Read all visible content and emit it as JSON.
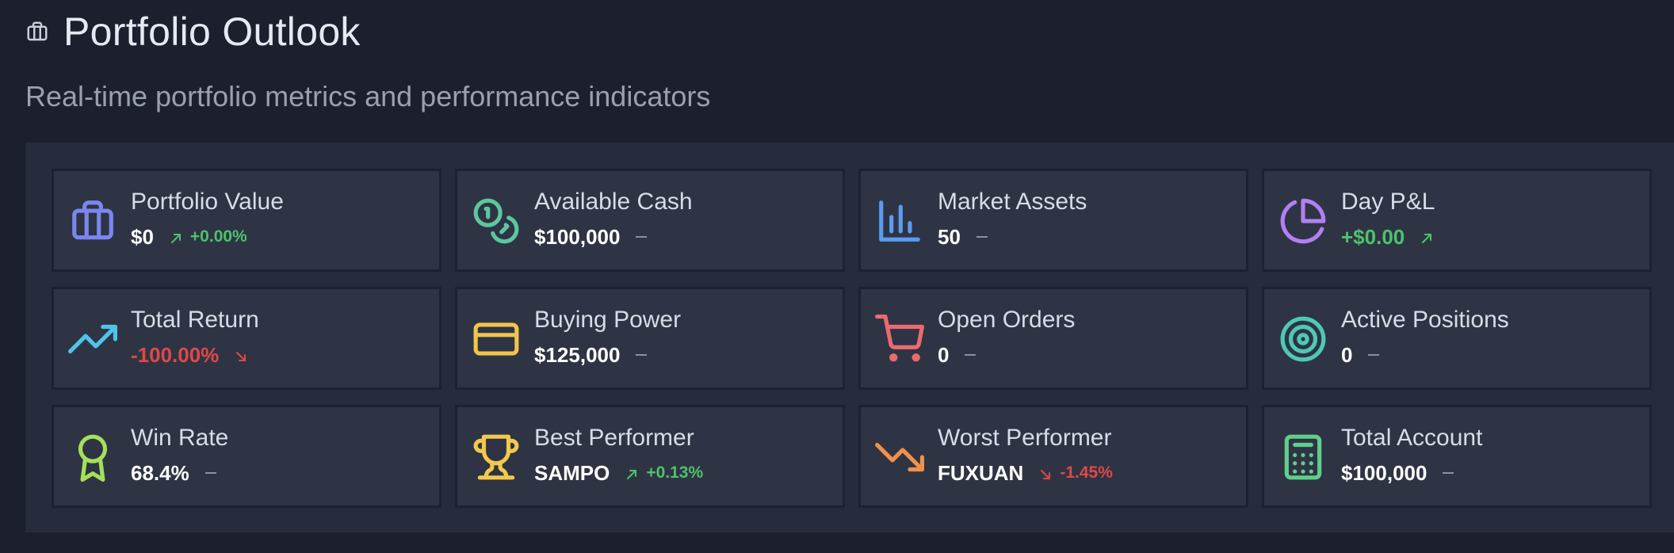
{
  "header": {
    "title": "Portfolio Outlook",
    "title_icon": "briefcase-icon",
    "subtitle": "Real-time portfolio metrics and performance indicators"
  },
  "cards": [
    {
      "label": "Portfolio Value",
      "value": "$0",
      "trend_text": "+0.00%",
      "trend": "up",
      "icon": "briefcase-icon",
      "icon_color": "#7b86f0"
    },
    {
      "label": "Available Cash",
      "value": "$100,000",
      "trend_text": "",
      "trend": "neutral",
      "icon": "coins-icon",
      "icon_color": "#5cc79e"
    },
    {
      "label": "Market Assets",
      "value": "50",
      "trend_text": "",
      "trend": "neutral",
      "icon": "bar-chart-icon",
      "icon_color": "#5b9bf0"
    },
    {
      "label": "Day P&L",
      "value": "+$0.00",
      "trend_text": "",
      "trend": "up",
      "icon": "pie-chart-icon",
      "icon_color": "#b27ff2"
    },
    {
      "label": "Total Return",
      "value": "-100.00%",
      "trend_text": "",
      "trend": "down",
      "icon": "trending-up-icon",
      "icon_color": "#4fc3e8"
    },
    {
      "label": "Buying Power",
      "value": "$125,000",
      "trend_text": "",
      "trend": "neutral",
      "icon": "credit-card-icon",
      "icon_color": "#f0c44c"
    },
    {
      "label": "Open Orders",
      "value": "0",
      "trend_text": "",
      "trend": "neutral",
      "icon": "shopping-cart-icon",
      "icon_color": "#ec6a6f"
    },
    {
      "label": "Active Positions",
      "value": "0",
      "trend_text": "",
      "trend": "neutral",
      "icon": "target-icon",
      "icon_color": "#4ecab2"
    },
    {
      "label": "Win Rate",
      "value": "68.4%",
      "trend_text": "",
      "trend": "neutral",
      "icon": "award-icon",
      "icon_color": "#a6e05a"
    },
    {
      "label": "Best Performer",
      "value": "SAMPO",
      "trend_text": "+0.13%",
      "trend": "up",
      "icon": "trophy-icon",
      "icon_color": "#f2c94c"
    },
    {
      "label": "Worst Performer",
      "value": "FUXUAN",
      "trend_text": "-1.45%",
      "trend": "down",
      "icon": "trending-down-icon",
      "icon_color": "#f0914a"
    },
    {
      "label": "Total Account",
      "value": "$100,000",
      "trend_text": "",
      "trend": "neutral",
      "icon": "calculator-icon",
      "icon_color": "#5fcf8a"
    }
  ],
  "colors": {
    "up": "#4cc36b",
    "down": "#e04848",
    "neutral": "#8a90a0"
  }
}
